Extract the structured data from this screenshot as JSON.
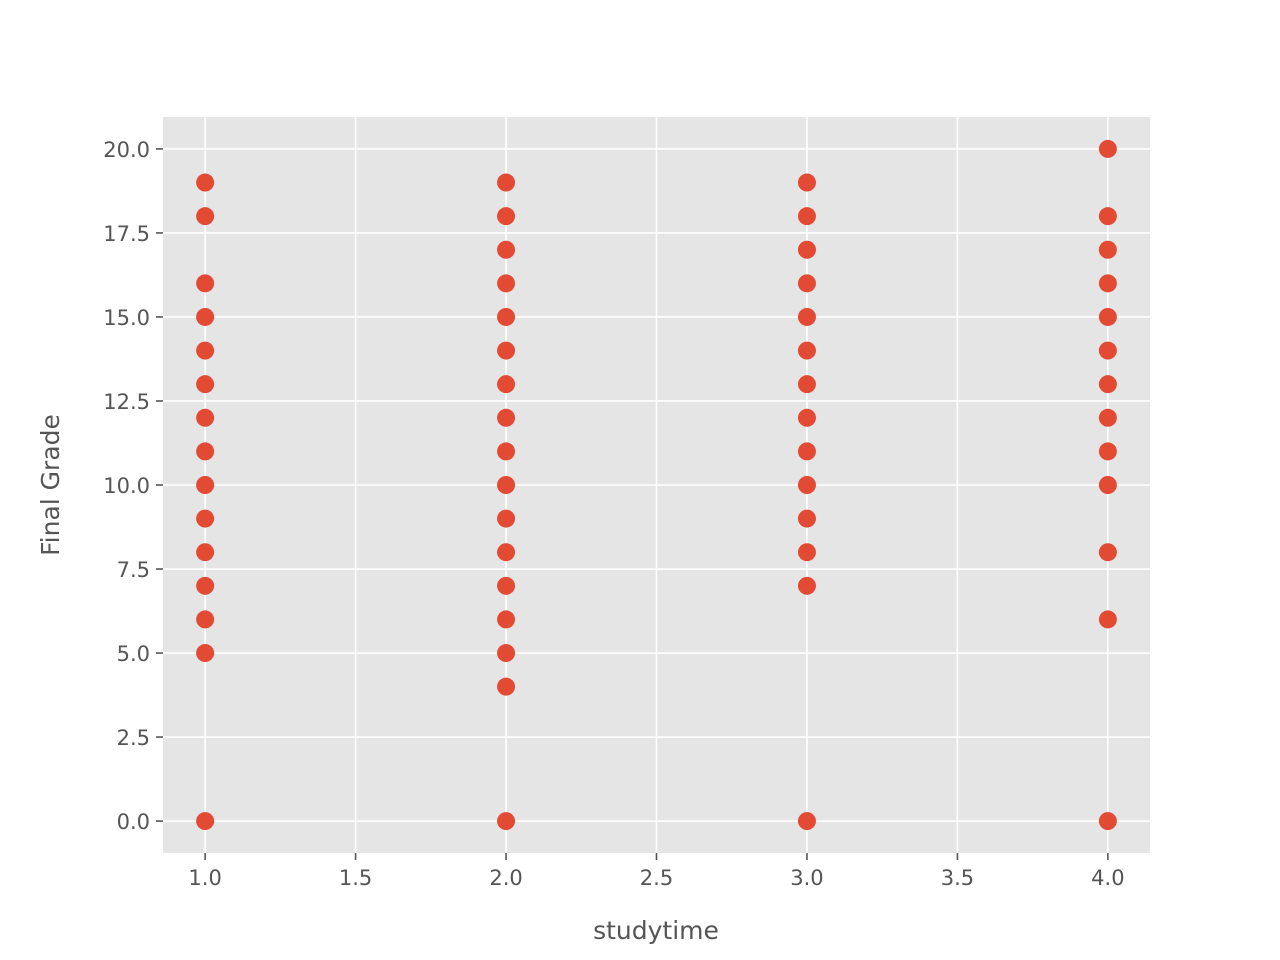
{
  "chart_data": {
    "type": "scatter",
    "title": "",
    "xlabel": "studytime",
    "ylabel": "Final Grade",
    "xlim": [
      0.86,
      4.14
    ],
    "ylim": [
      -0.95,
      20.95
    ],
    "xticks": [
      1.0,
      1.5,
      2.0,
      2.5,
      3.0,
      3.5,
      4.0
    ],
    "xtick_labels": [
      "1.0",
      "1.5",
      "2.0",
      "2.5",
      "3.0",
      "3.5",
      "4.0"
    ],
    "yticks": [
      0.0,
      2.5,
      5.0,
      7.5,
      10.0,
      12.5,
      15.0,
      17.5,
      20.0
    ],
    "ytick_labels": [
      "0.0",
      "2.5",
      "5.0",
      "7.5",
      "10.0",
      "12.5",
      "15.0",
      "17.5",
      "20.0"
    ],
    "grid": true,
    "legend": "none",
    "colors": {
      "marker": "#e24a33",
      "plot_background": "#e5e5e5",
      "grid": "#ffffff",
      "text": "#555555"
    },
    "points": [
      {
        "x": 1,
        "y": 0
      },
      {
        "x": 1,
        "y": 5
      },
      {
        "x": 1,
        "y": 6
      },
      {
        "x": 1,
        "y": 7
      },
      {
        "x": 1,
        "y": 8
      },
      {
        "x": 1,
        "y": 9
      },
      {
        "x": 1,
        "y": 10
      },
      {
        "x": 1,
        "y": 11
      },
      {
        "x": 1,
        "y": 12
      },
      {
        "x": 1,
        "y": 13
      },
      {
        "x": 1,
        "y": 14
      },
      {
        "x": 1,
        "y": 15
      },
      {
        "x": 1,
        "y": 16
      },
      {
        "x": 1,
        "y": 18
      },
      {
        "x": 1,
        "y": 19
      },
      {
        "x": 2,
        "y": 0
      },
      {
        "x": 2,
        "y": 4
      },
      {
        "x": 2,
        "y": 5
      },
      {
        "x": 2,
        "y": 6
      },
      {
        "x": 2,
        "y": 7
      },
      {
        "x": 2,
        "y": 8
      },
      {
        "x": 2,
        "y": 9
      },
      {
        "x": 2,
        "y": 10
      },
      {
        "x": 2,
        "y": 11
      },
      {
        "x": 2,
        "y": 12
      },
      {
        "x": 2,
        "y": 13
      },
      {
        "x": 2,
        "y": 14
      },
      {
        "x": 2,
        "y": 15
      },
      {
        "x": 2,
        "y": 16
      },
      {
        "x": 2,
        "y": 17
      },
      {
        "x": 2,
        "y": 18
      },
      {
        "x": 2,
        "y": 19
      },
      {
        "x": 3,
        "y": 0
      },
      {
        "x": 3,
        "y": 7
      },
      {
        "x": 3,
        "y": 8
      },
      {
        "x": 3,
        "y": 9
      },
      {
        "x": 3,
        "y": 10
      },
      {
        "x": 3,
        "y": 11
      },
      {
        "x": 3,
        "y": 12
      },
      {
        "x": 3,
        "y": 13
      },
      {
        "x": 3,
        "y": 14
      },
      {
        "x": 3,
        "y": 15
      },
      {
        "x": 3,
        "y": 16
      },
      {
        "x": 3,
        "y": 17
      },
      {
        "x": 3,
        "y": 18
      },
      {
        "x": 3,
        "y": 19
      },
      {
        "x": 4,
        "y": 0
      },
      {
        "x": 4,
        "y": 6
      },
      {
        "x": 4,
        "y": 8
      },
      {
        "x": 4,
        "y": 10
      },
      {
        "x": 4,
        "y": 11
      },
      {
        "x": 4,
        "y": 12
      },
      {
        "x": 4,
        "y": 13
      },
      {
        "x": 4,
        "y": 14
      },
      {
        "x": 4,
        "y": 15
      },
      {
        "x": 4,
        "y": 16
      },
      {
        "x": 4,
        "y": 17
      },
      {
        "x": 4,
        "y": 18
      },
      {
        "x": 4,
        "y": 20
      }
    ]
  }
}
